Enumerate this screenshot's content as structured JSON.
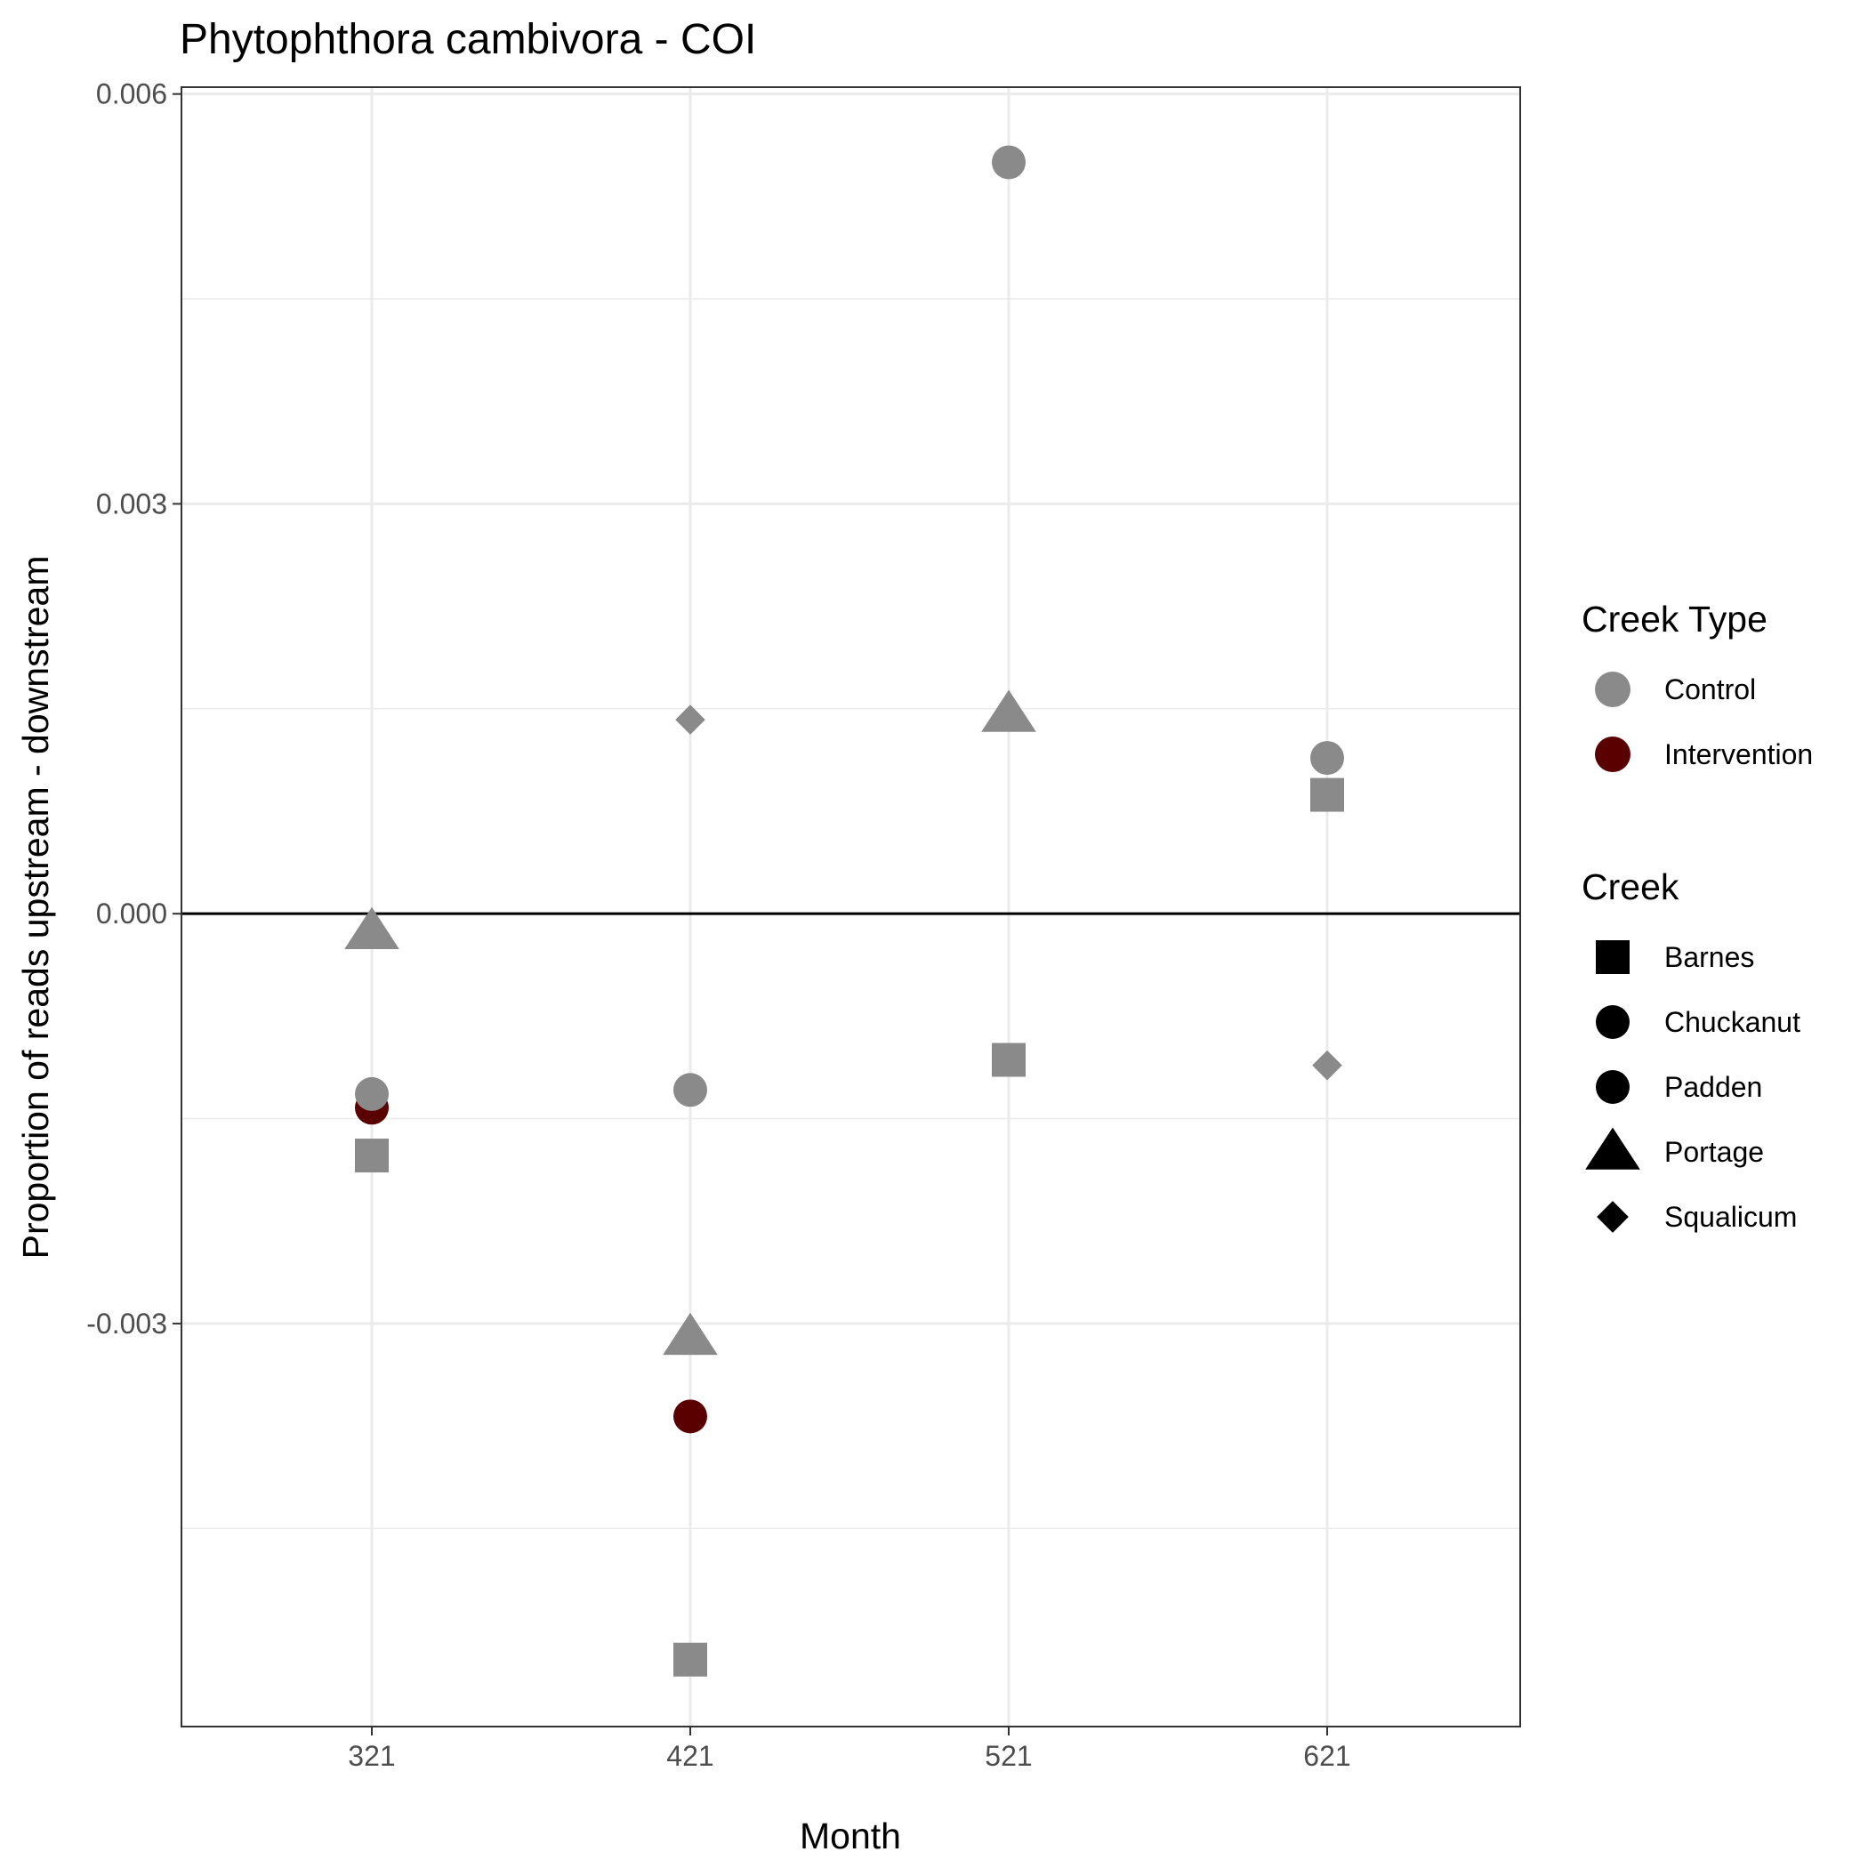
{
  "chart_data": {
    "type": "scatter",
    "title": "Phytophthora cambivora - COI",
    "xlabel": "Month",
    "ylabel": "Proportion of reads upstream - downstream",
    "x_categories": [
      "321",
      "421",
      "521",
      "621"
    ],
    "ylim": [
      -0.00595,
      0.00605
    ],
    "yticks": [
      -0.003,
      0.0,
      0.003,
      0.006
    ],
    "ytick_labels": [
      "-0.003",
      "0.000",
      "0.003",
      "0.006"
    ],
    "grid": true,
    "reference_line_y": 0.0,
    "colors": {
      "Control": "#8a8a8a",
      "Intervention": "#5a0000",
      "legend_shape": "#000000",
      "grid": "#ebebeb",
      "axis": "#333333"
    },
    "legend": {
      "placement": "right",
      "creek_type_title": "Creek Type",
      "creek_type": [
        {
          "label": "Control",
          "shape": "circle"
        },
        {
          "label": "Intervention",
          "shape": "circle"
        }
      ],
      "creek_title": "Creek",
      "creek": [
        {
          "label": "Barnes",
          "shape": "square"
        },
        {
          "label": "Chuckanut",
          "shape": "circle"
        },
        {
          "label": "Padden",
          "shape": "circle"
        },
        {
          "label": "Portage",
          "shape": "triangle"
        },
        {
          "label": "Squalicum",
          "shape": "diamond"
        }
      ]
    },
    "points": [
      {
        "month": "321",
        "y": -0.00013,
        "creek": "Portage",
        "type": "Control"
      },
      {
        "month": "321",
        "y": -0.00142,
        "creek": "Padden",
        "type": "Intervention"
      },
      {
        "month": "321",
        "y": -0.00132,
        "creek": "Chuckanut",
        "type": "Control"
      },
      {
        "month": "321",
        "y": -0.00177,
        "creek": "Barnes",
        "type": "Control"
      },
      {
        "month": "421",
        "y": 0.00142,
        "creek": "Squalicum",
        "type": "Control"
      },
      {
        "month": "421",
        "y": -0.00129,
        "creek": "Chuckanut",
        "type": "Control"
      },
      {
        "month": "421",
        "y": -0.0031,
        "creek": "Portage",
        "type": "Control"
      },
      {
        "month": "421",
        "y": -0.00368,
        "creek": "Padden",
        "type": "Intervention"
      },
      {
        "month": "421",
        "y": -0.00546,
        "creek": "Barnes",
        "type": "Control"
      },
      {
        "month": "521",
        "y": 0.0055,
        "creek": "Chuckanut",
        "type": "Control"
      },
      {
        "month": "521",
        "y": 0.00146,
        "creek": "Portage",
        "type": "Control"
      },
      {
        "month": "521",
        "y": -0.00107,
        "creek": "Barnes",
        "type": "Control"
      },
      {
        "month": "621",
        "y": 0.00114,
        "creek": "Chuckanut",
        "type": "Control"
      },
      {
        "month": "621",
        "y": 0.00087,
        "creek": "Barnes",
        "type": "Control"
      },
      {
        "month": "621",
        "y": -0.00111,
        "creek": "Squalicum",
        "type": "Control"
      }
    ]
  }
}
